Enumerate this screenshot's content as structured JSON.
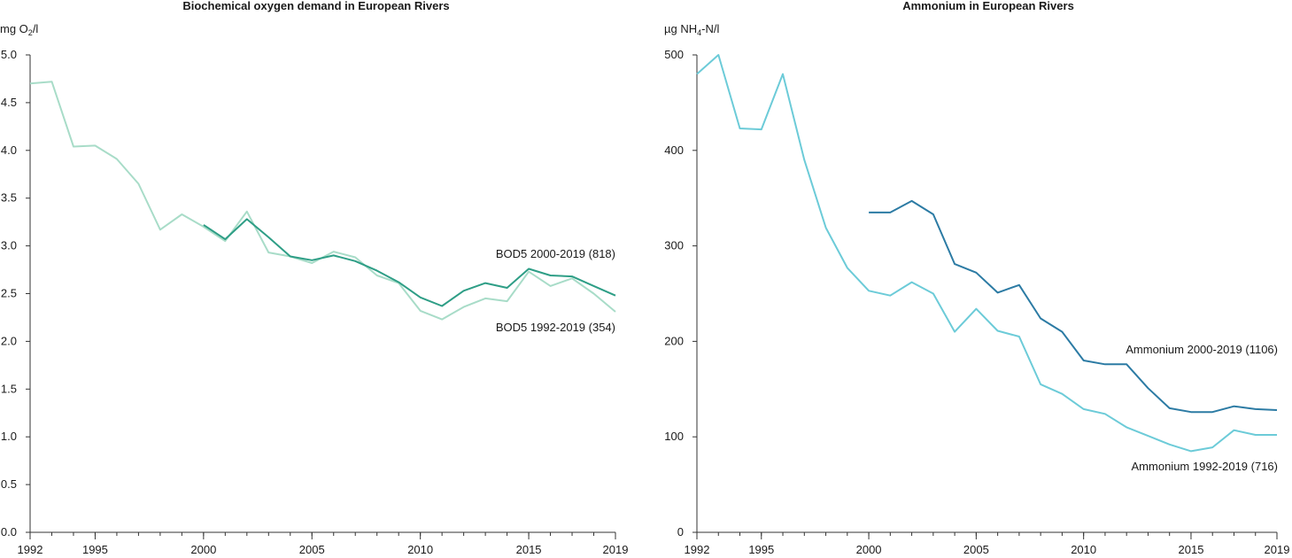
{
  "chart_data": [
    {
      "type": "line",
      "title": "Biochemical oxygen demand in European Rivers",
      "ylabel": {
        "prefix": "mg O",
        "sub": "2",
        "suffix": "/l"
      },
      "ylim": [
        0,
        5
      ],
      "yticks": [
        "0.0",
        "0.5",
        "1.0",
        "1.5",
        "2.0",
        "2.5",
        "3.0",
        "3.5",
        "4.0",
        "4.5",
        "5.0"
      ],
      "xlim": [
        1992,
        2019
      ],
      "xticks": [
        1992,
        1995,
        2000,
        2005,
        2010,
        2015,
        2019
      ],
      "grid": false,
      "colors": {
        "BOD5 1992-2019 (354)": "#a8dcc8",
        "BOD5 2000-2019 (818)": "#2e9e86"
      },
      "series": [
        {
          "name": "BOD5 1992-2019 (354)",
          "x": [
            1992,
            1993,
            1994,
            1995,
            1996,
            1997,
            1998,
            1999,
            2000,
            2001,
            2002,
            2003,
            2004,
            2005,
            2006,
            2007,
            2008,
            2009,
            2010,
            2011,
            2012,
            2013,
            2014,
            2015,
            2016,
            2017,
            2018,
            2019
          ],
          "values": [
            4.7,
            4.72,
            4.04,
            4.05,
            3.91,
            3.65,
            3.17,
            3.33,
            3.2,
            3.05,
            3.36,
            2.93,
            2.89,
            2.82,
            2.94,
            2.88,
            2.69,
            2.61,
            2.32,
            2.23,
            2.36,
            2.45,
            2.42,
            2.73,
            2.58,
            2.66,
            2.5,
            2.31
          ]
        },
        {
          "name": "BOD5 2000-2019 (818)",
          "x": [
            2000,
            2001,
            2002,
            2003,
            2004,
            2005,
            2006,
            2007,
            2008,
            2009,
            2010,
            2011,
            2012,
            2013,
            2014,
            2015,
            2016,
            2017,
            2018,
            2019
          ],
          "values": [
            3.22,
            3.07,
            3.28,
            3.09,
            2.89,
            2.85,
            2.9,
            2.84,
            2.74,
            2.62,
            2.46,
            2.37,
            2.53,
            2.61,
            2.56,
            2.76,
            2.69,
            2.68,
            2.58,
            2.48
          ]
        }
      ]
    },
    {
      "type": "line",
      "title": "Ammonium in European Rivers",
      "ylabel": {
        "prefix": "µg NH",
        "sub": "4",
        "suffix": "-N/l"
      },
      "ylim": [
        0,
        500
      ],
      "yticks": [
        "0",
        "100",
        "200",
        "300",
        "400",
        "500"
      ],
      "xlim": [
        1992,
        2019
      ],
      "xticks": [
        1992,
        1995,
        2000,
        2005,
        2010,
        2015,
        2019
      ],
      "grid": false,
      "colors": {
        "Ammonium 1992-2019 (716)": "#6ccbd8",
        "Ammonium 2000-2019 (1106)": "#2c7ba4"
      },
      "series": [
        {
          "name": "Ammonium 1992-2019 (716)",
          "x": [
            1992,
            1993,
            1994,
            1995,
            1996,
            1997,
            1998,
            1999,
            2000,
            2001,
            2002,
            2003,
            2004,
            2005,
            2006,
            2007,
            2008,
            2009,
            2010,
            2011,
            2012,
            2013,
            2014,
            2015,
            2016,
            2017,
            2018,
            2019
          ],
          "values": [
            480,
            500,
            423,
            422,
            480,
            390,
            319,
            277,
            253,
            248,
            262,
            250,
            210,
            234,
            211,
            205,
            155,
            145,
            129,
            124,
            110,
            101,
            92,
            85,
            89,
            107,
            102,
            102
          ]
        },
        {
          "name": "Ammonium 2000-2019 (1106)",
          "x": [
            2000,
            2001,
            2002,
            2003,
            2004,
            2005,
            2006,
            2007,
            2008,
            2009,
            2010,
            2011,
            2012,
            2013,
            2014,
            2015,
            2016,
            2017,
            2018,
            2019
          ],
          "values": [
            335,
            335,
            347,
            333,
            281,
            272,
            251,
            259,
            224,
            210,
            180,
            176,
            176,
            151,
            130,
            126,
            126,
            132,
            129,
            128
          ]
        }
      ]
    }
  ]
}
